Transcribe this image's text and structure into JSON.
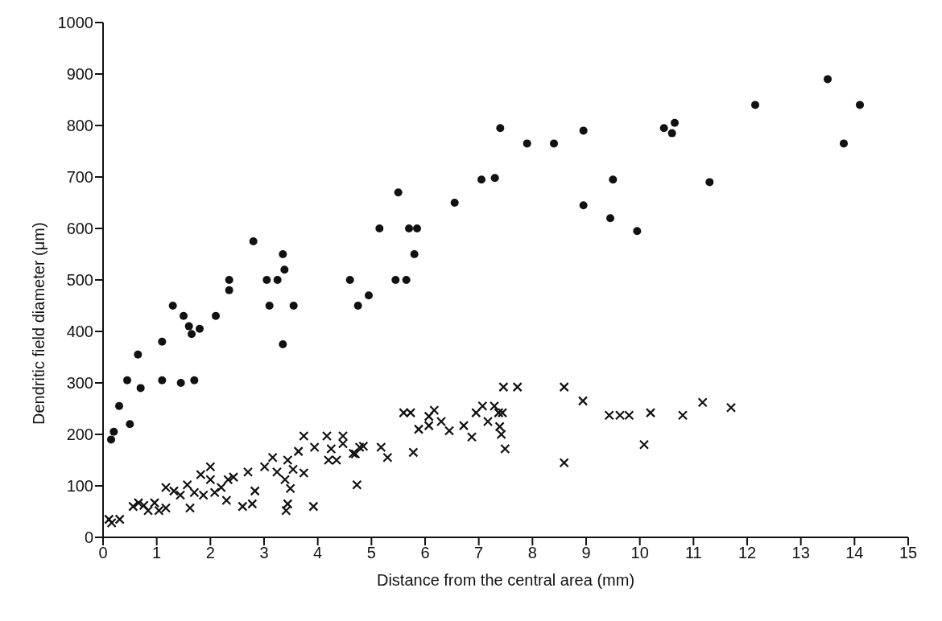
{
  "chart_data": {
    "type": "scatter",
    "xlabel": "Distance from the central area (mm)",
    "ylabel": "Dendritic field diameter (μm)",
    "xlim": [
      0,
      15
    ],
    "xticks": [
      0,
      1,
      2,
      3,
      4,
      5,
      6,
      7,
      8,
      9,
      10,
      11,
      12,
      13,
      14,
      15
    ],
    "ylim": [
      0,
      1000
    ],
    "yticks": [
      0,
      100,
      200,
      300,
      400,
      500,
      600,
      700,
      800,
      900,
      1000
    ],
    "grid": false,
    "legend": false,
    "series": [
      {
        "color": "#111111",
        "marker": "circle",
        "x": [
          0.15,
          0.2,
          0.3,
          0.45,
          0.5,
          0.65,
          0.7,
          1.1,
          1.1,
          1.3,
          1.5,
          1.45,
          1.6,
          1.65,
          1.7,
          1.8,
          2.1,
          2.35,
          2.35,
          2.8,
          3.05,
          3.1,
          3.25,
          3.35,
          3.38,
          3.35,
          3.55,
          4.6,
          4.75,
          4.95,
          5.15,
          5.45,
          5.5,
          5.65,
          5.7,
          5.8,
          5.85,
          6.55,
          7.05,
          7.3,
          7.4,
          7.9,
          8.4,
          8.95,
          8.95,
          9.45,
          9.5,
          9.95,
          10.45,
          10.6,
          10.65,
          11.3,
          12.15,
          13.5,
          13.8,
          14.1
        ],
        "values": [
          190,
          205,
          255,
          305,
          220,
          355,
          290,
          380,
          305,
          450,
          430,
          300,
          410,
          395,
          305,
          405,
          430,
          500,
          480,
          575,
          500,
          450,
          500,
          550,
          520,
          375,
          450,
          500,
          450,
          470,
          600,
          500,
          670,
          500,
          600,
          550,
          600,
          650,
          695,
          698,
          795,
          765,
          765,
          790,
          645,
          620,
          695,
          595,
          795,
          785,
          805,
          690,
          840,
          890,
          765,
          840
        ]
      },
      {
        "color": "#111111",
        "marker": "cross",
        "x": [
          0.11,
          0.16,
          0.31,
          0.56,
          0.66,
          0.76,
          0.84,
          0.96,
          1.04,
          1.17,
          1.17,
          1.32,
          1.44,
          1.57,
          1.62,
          1.7,
          1.82,
          1.87,
          2.0,
          2.0,
          2.08,
          2.2,
          2.3,
          2.33,
          2.43,
          2.6,
          2.7,
          2.78,
          2.83,
          3.01,
          3.16,
          3.24,
          3.39,
          3.44,
          3.49,
          3.44,
          3.41,
          3.54,
          3.64,
          3.74,
          3.74,
          3.94,
          3.92,
          4.17,
          4.25,
          4.2,
          4.35,
          4.47,
          4.47,
          4.7,
          4.73,
          4.85,
          4.66,
          4.78,
          5.18,
          5.3,
          5.78,
          5.6,
          5.73,
          5.88,
          6.07,
          6.17,
          6.07,
          6.3,
          6.45,
          6.72,
          6.87,
          6.95,
          7.07,
          7.17,
          7.29,
          7.37,
          7.44,
          7.39,
          7.42,
          7.49,
          7.46,
          7.72,
          8.59,
          8.59,
          8.94,
          9.43,
          9.63,
          9.8,
          10.2,
          10.08,
          10.8,
          11.17,
          11.7
        ],
        "values": [
          35,
          28,
          35,
          60,
          67,
          62,
          52,
          67,
          52,
          57,
          97,
          90,
          82,
          102,
          57,
          87,
          122,
          82,
          137,
          112,
          87,
          97,
          72,
          112,
          117,
          60,
          127,
          65,
          90,
          137,
          155,
          127,
          112,
          150,
          95,
          65,
          52,
          132,
          167,
          125,
          197,
          175,
          60,
          197,
          172,
          150,
          150,
          197,
          182,
          162,
          102,
          177,
          163,
          175,
          175,
          155,
          165,
          242,
          242,
          210,
          235,
          247,
          217,
          225,
          207,
          217,
          195,
          242,
          255,
          225,
          255,
          242,
          242,
          215,
          200,
          172,
          292,
          292,
          292,
          145,
          265,
          237,
          237,
          237,
          242,
          180,
          237,
          262,
          252
        ]
      }
    ]
  }
}
